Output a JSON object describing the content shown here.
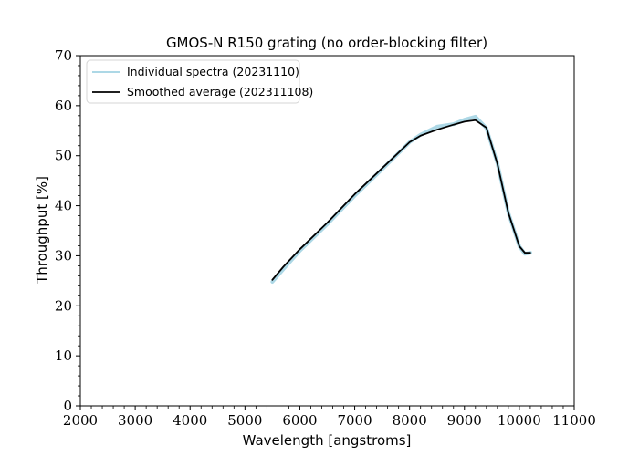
{
  "chart_data": {
    "type": "line",
    "title": "GMOS-N R150 grating (no order-blocking filter)",
    "xlabel": "Wavelength [angstroms]",
    "ylabel": "Throughput [%]",
    "xlim": [
      2000,
      11000
    ],
    "ylim": [
      0,
      70
    ],
    "xticks": [
      2000,
      3000,
      4000,
      5000,
      6000,
      7000,
      8000,
      9000,
      10000,
      11000
    ],
    "yticks": [
      0,
      10,
      20,
      30,
      40,
      50,
      60,
      70
    ],
    "grid": false,
    "legend_position": "top-left",
    "series": [
      {
        "name": "Individual spectra (20231110)",
        "color": "#add8e6",
        "x": [
          5500,
          5700,
          6000,
          6500,
          7000,
          7500,
          8000,
          8200,
          8500,
          8800,
          9000,
          9200,
          9400,
          9600,
          9800,
          10000,
          10100,
          10200
        ],
        "y": [
          24.8,
          27.3,
          31.0,
          36.3,
          42.0,
          47.3,
          52.7,
          54.2,
          55.8,
          56.3,
          57.2,
          57.8,
          55.5,
          48.5,
          38.6,
          31.9,
          30.4,
          30.6
        ]
      },
      {
        "name": "Smoothed average (202311108)",
        "color": "#000000",
        "x": [
          5500,
          5700,
          6000,
          6500,
          7000,
          7500,
          8000,
          8200,
          8500,
          8800,
          9000,
          9200,
          9400,
          9600,
          9800,
          10000,
          10100,
          10200
        ],
        "y": [
          25.2,
          27.8,
          31.3,
          36.6,
          42.3,
          47.5,
          52.7,
          54.0,
          55.2,
          56.2,
          56.8,
          57.1,
          55.6,
          48.4,
          38.6,
          31.9,
          30.6,
          30.6
        ]
      }
    ]
  }
}
